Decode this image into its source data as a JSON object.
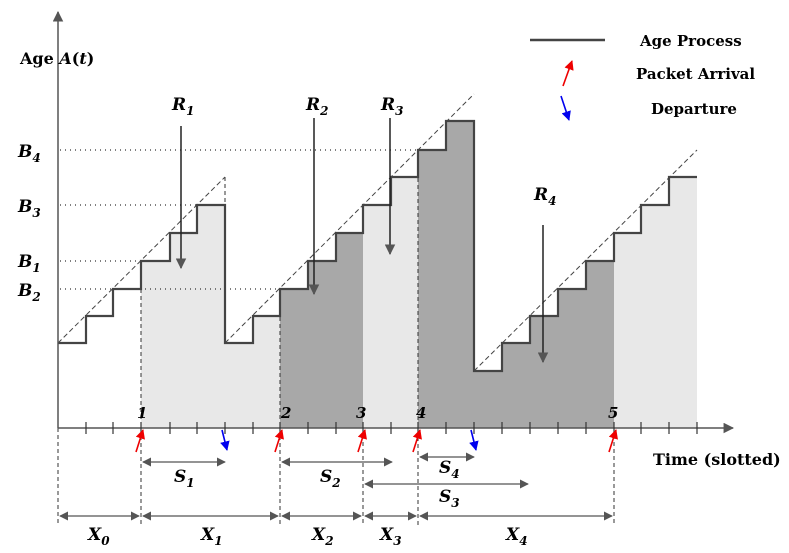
{
  "axes": {
    "y_label_prefix": "Age ",
    "y_label_var": "A",
    "y_label_open": "(",
    "y_label_t": "t",
    "y_label_close": ")",
    "x_label": "Time (slotted)"
  },
  "legend": {
    "age_process": "Age Process",
    "packet_arrival": "Packet Arrival",
    "departure": "Departure"
  },
  "y_ticks": [
    {
      "main": "B",
      "sub": "4"
    },
    {
      "main": "B",
      "sub": "3"
    },
    {
      "main": "B",
      "sub": "1"
    },
    {
      "main": "B",
      "sub": "2"
    }
  ],
  "arrival_labels": [
    "1",
    "2",
    "3",
    "4",
    "5"
  ],
  "r_labels": [
    {
      "main": "R",
      "sub": "1"
    },
    {
      "main": "R",
      "sub": "2"
    },
    {
      "main": "R",
      "sub": "3"
    },
    {
      "main": "R",
      "sub": "4"
    }
  ],
  "service_labels": [
    {
      "main": "S",
      "sub": "1"
    },
    {
      "main": "S",
      "sub": "2"
    },
    {
      "main": "S",
      "sub": "4"
    },
    {
      "main": "S",
      "sub": "3"
    }
  ],
  "interval_labels": [
    {
      "main": "X",
      "sub": "0"
    },
    {
      "main": "X",
      "sub": "1"
    },
    {
      "main": "X",
      "sub": "2"
    },
    {
      "main": "X",
      "sub": "3"
    },
    {
      "main": "X",
      "sub": "4"
    }
  ],
  "colors": {
    "light_fill": "#e8e8e8",
    "dark_fill": "#a8a8a8",
    "arrival_arrow": "#ee0000",
    "departure_arrow": "#0000ee",
    "line": "#444444"
  }
}
